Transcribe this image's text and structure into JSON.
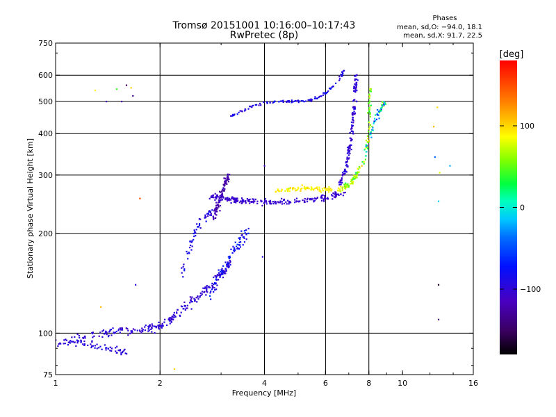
{
  "chart_data": {
    "type": "scatter",
    "title": "Tromsø 20151001 10:16:00–10:17:43",
    "subtitle": "RwPretec (8p)",
    "xlabel": "Frequency [MHz]",
    "ylabel": "Stationary phase Virtual Height [km]",
    "x_scale": "log",
    "y_scale": "log",
    "xlim": [
      1,
      16
    ],
    "ylim": [
      75,
      750
    ],
    "x_ticks": [
      1,
      2,
      4,
      6,
      8,
      10,
      16
    ],
    "x_tick_labels": [
      "1",
      "2",
      "4",
      "6",
      "8",
      "10",
      "16"
    ],
    "y_ticks": [
      75,
      100,
      200,
      300,
      400,
      500,
      600,
      750
    ],
    "y_tick_labels": [
      "75",
      "100",
      "200",
      "300",
      "400",
      "500",
      "600",
      "750"
    ],
    "x_gridlines": [
      2,
      4,
      6,
      8
    ],
    "y_gridlines": [
      100,
      200,
      300,
      400,
      500,
      600
    ],
    "grid": true,
    "stats": {
      "heading": "Phases",
      "line_o": "mean, sd,O: −94.0, 18.1",
      "line_x": "mean, sd,X:  91.7, 22.5"
    },
    "colorbar": {
      "label": "[deg]",
      "range": [
        -180,
        180
      ],
      "ticks": [
        100,
        0,
        -100
      ],
      "tick_labels": [
        "100",
        "0",
        "−100"
      ]
    },
    "trace_groups": [
      {
        "x": [
          1.0,
          1.15,
          1.35,
          1.5,
          1.7,
          1.85,
          2.0,
          2.15,
          2.35,
          2.55,
          2.8,
          3.0,
          3.2
        ],
        "y": [
          93,
          97,
          99,
          102,
          101,
          103,
          105,
          110,
          120,
          128,
          138,
          150,
          165
        ],
        "jitter": 0.045,
        "count": 260,
        "phase": -100,
        "spread": 20
      },
      {
        "x": [
          1.05,
          1.2,
          1.4,
          1.6
        ],
        "y": [
          95,
          93,
          90,
          88
        ],
        "jitter": 0.04,
        "count": 60,
        "phase": -95,
        "spread": 15
      },
      {
        "x": [
          2.3,
          2.4,
          2.5,
          2.6,
          2.7,
          2.8
        ],
        "y": [
          150,
          175,
          200,
          215,
          225,
          230
        ],
        "jitter": 0.04,
        "count": 60,
        "phase": -90,
        "spread": 25
      },
      {
        "x": [
          2.8,
          3.0,
          3.2,
          3.4,
          3.6
        ],
        "y": [
          130,
          150,
          170,
          190,
          205
        ],
        "jitter": 0.05,
        "count": 80,
        "phase": -80,
        "spread": 35
      },
      {
        "x": [
          2.85,
          2.95,
          3.05,
          3.15
        ],
        "y": [
          220,
          245,
          275,
          300
        ],
        "jitter": 0.035,
        "count": 90,
        "phase": -120,
        "spread": 25
      },
      {
        "x": [
          2.8,
          3.0,
          3.3,
          3.7,
          4.2,
          4.8,
          5.5,
          6.2,
          6.8
        ],
        "y": [
          260,
          255,
          252,
          250,
          248,
          250,
          253,
          258,
          265
        ],
        "jitter": 0.03,
        "count": 230,
        "phase": -105,
        "spread": 12
      },
      {
        "x": [
          4.3,
          4.8,
          5.3,
          5.8,
          6.3,
          6.8,
          7.2
        ],
        "y": [
          270,
          272,
          275,
          272,
          270,
          275,
          285
        ],
        "jitter": 0.025,
        "count": 100,
        "phase": 90,
        "spread": 20
      },
      {
        "x": [
          3.2,
          3.6,
          4.0,
          4.5,
          5.0,
          5.5,
          6.0,
          6.5,
          6.8
        ],
        "y": [
          450,
          480,
          495,
          500,
          500,
          505,
          530,
          575,
          620
        ],
        "jitter": 0.015,
        "count": 110,
        "phase": -90,
        "spread": 30
      },
      {
        "x": [
          6.6,
          6.9,
          7.1,
          7.2,
          7.3,
          7.35
        ],
        "y": [
          280,
          320,
          380,
          450,
          530,
          600
        ],
        "jitter": 0.03,
        "count": 140,
        "phase": -100,
        "spread": 25
      },
      {
        "x": [
          6.6,
          7.0,
          7.4,
          7.8,
          8.0,
          8.1
        ],
        "y": [
          270,
          280,
          300,
          340,
          420,
          560
        ],
        "jitter": 0.03,
        "count": 120,
        "phase": 60,
        "spread": 60
      },
      {
        "x": [
          7.8,
          8.2,
          8.6,
          8.9
        ],
        "y": [
          350,
          420,
          470,
          500
        ],
        "jitter": 0.03,
        "count": 60,
        "phase": 0,
        "spread": 120
      }
    ],
    "isolated_points": [
      {
        "x": 1.3,
        "y": 540,
        "phase": 90
      },
      {
        "x": 1.4,
        "y": 500,
        "phase": -110
      },
      {
        "x": 1.5,
        "y": 545,
        "phase": 40
      },
      {
        "x": 1.55,
        "y": 500,
        "phase": -120
      },
      {
        "x": 1.6,
        "y": 560,
        "phase": -150
      },
      {
        "x": 1.65,
        "y": 550,
        "phase": 100
      },
      {
        "x": 1.67,
        "y": 520,
        "phase": -130
      },
      {
        "x": 1.75,
        "y": 255,
        "phase": 150
      },
      {
        "x": 2.2,
        "y": 78,
        "phase": 100
      },
      {
        "x": 1.35,
        "y": 120,
        "phase": 110
      },
      {
        "x": 1.7,
        "y": 140,
        "phase": -100
      },
      {
        "x": 4.0,
        "y": 320,
        "phase": -110
      },
      {
        "x": 3.95,
        "y": 170,
        "phase": -100
      },
      {
        "x": 12.6,
        "y": 480,
        "phase": 100
      },
      {
        "x": 12.8,
        "y": 305,
        "phase": 80
      },
      {
        "x": 12.3,
        "y": 420,
        "phase": 110
      },
      {
        "x": 12.4,
        "y": 340,
        "phase": -40
      },
      {
        "x": 13.7,
        "y": 320,
        "phase": -20
      },
      {
        "x": 12.7,
        "y": 250,
        "phase": -10
      },
      {
        "x": 12.7,
        "y": 140,
        "phase": -170
      },
      {
        "x": 12.7,
        "y": 110,
        "phase": -140
      }
    ]
  }
}
